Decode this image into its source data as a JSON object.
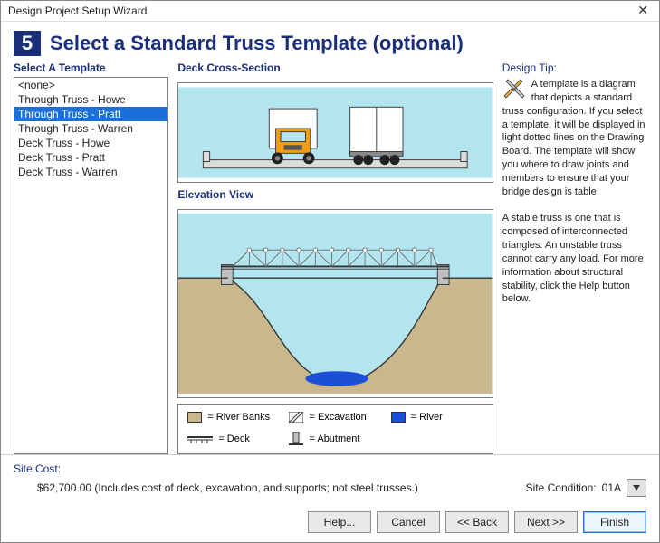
{
  "window": {
    "title": "Design Project Setup Wizard"
  },
  "step": {
    "number": "5",
    "title": "Select a Standard Truss Template (optional)"
  },
  "template_list": {
    "label": "Select A Template",
    "items": [
      "<none>",
      "Through Truss - Howe",
      "Through Truss - Pratt",
      "Through Truss - Warren",
      "Deck Truss - Howe",
      "Deck Truss - Pratt",
      "Deck Truss - Warren"
    ],
    "selected_index": 2
  },
  "cross_section": {
    "label": "Deck Cross-Section",
    "colors": {
      "sky": "#b3e5ef",
      "deck": "#dcdcdc",
      "deck_edge": "#555555",
      "truck1_cab": "#f39c12",
      "truck1_box": "#ffffff",
      "truck2_box": "#ffffff",
      "wheel": "#222222"
    }
  },
  "elevation": {
    "label": "Elevation View",
    "colors": {
      "sky": "#b3e5ef",
      "ground": "#c9b88e",
      "water": "#b3e5ef",
      "deep_water": "#1a4fd6",
      "abutment": "#bfbfbf",
      "outline": "#333333",
      "truss": "#6c6c6c"
    }
  },
  "legend": {
    "items": [
      {
        "label": "= River Banks",
        "kind": "swatch",
        "color": "#c9b88e"
      },
      {
        "label": "= Excavation",
        "kind": "hatched"
      },
      {
        "label": "= River",
        "kind": "swatch",
        "color": "#1a4fd6"
      },
      {
        "label": "= Deck",
        "kind": "deck-icon"
      },
      {
        "label": "= Abutment",
        "kind": "abutment-icon"
      }
    ]
  },
  "tip": {
    "title": "Design Tip:",
    "para1": "A template is a diagram that depicts a standard truss configuration. If you select a template, it will be displayed in light dotted lines on the Drawing Board. The template will show you where to draw joints and members to ensure that your bridge design is table",
    "para2": "A stable truss is one that is composed of interconnected triangles. An unstable truss cannot carry any load. For more information about structural stability, click the Help button below."
  },
  "site_cost": {
    "label": "Site Cost:",
    "value": "$62,700.00  (Includes cost of deck, excavation, and supports; not steel trusses.)"
  },
  "site_condition": {
    "label": "Site Condition:",
    "value": "01A"
  },
  "buttons": {
    "help": "Help...",
    "cancel": "Cancel",
    "back": "<< Back",
    "next": "Next >>",
    "finish": "Finish"
  }
}
